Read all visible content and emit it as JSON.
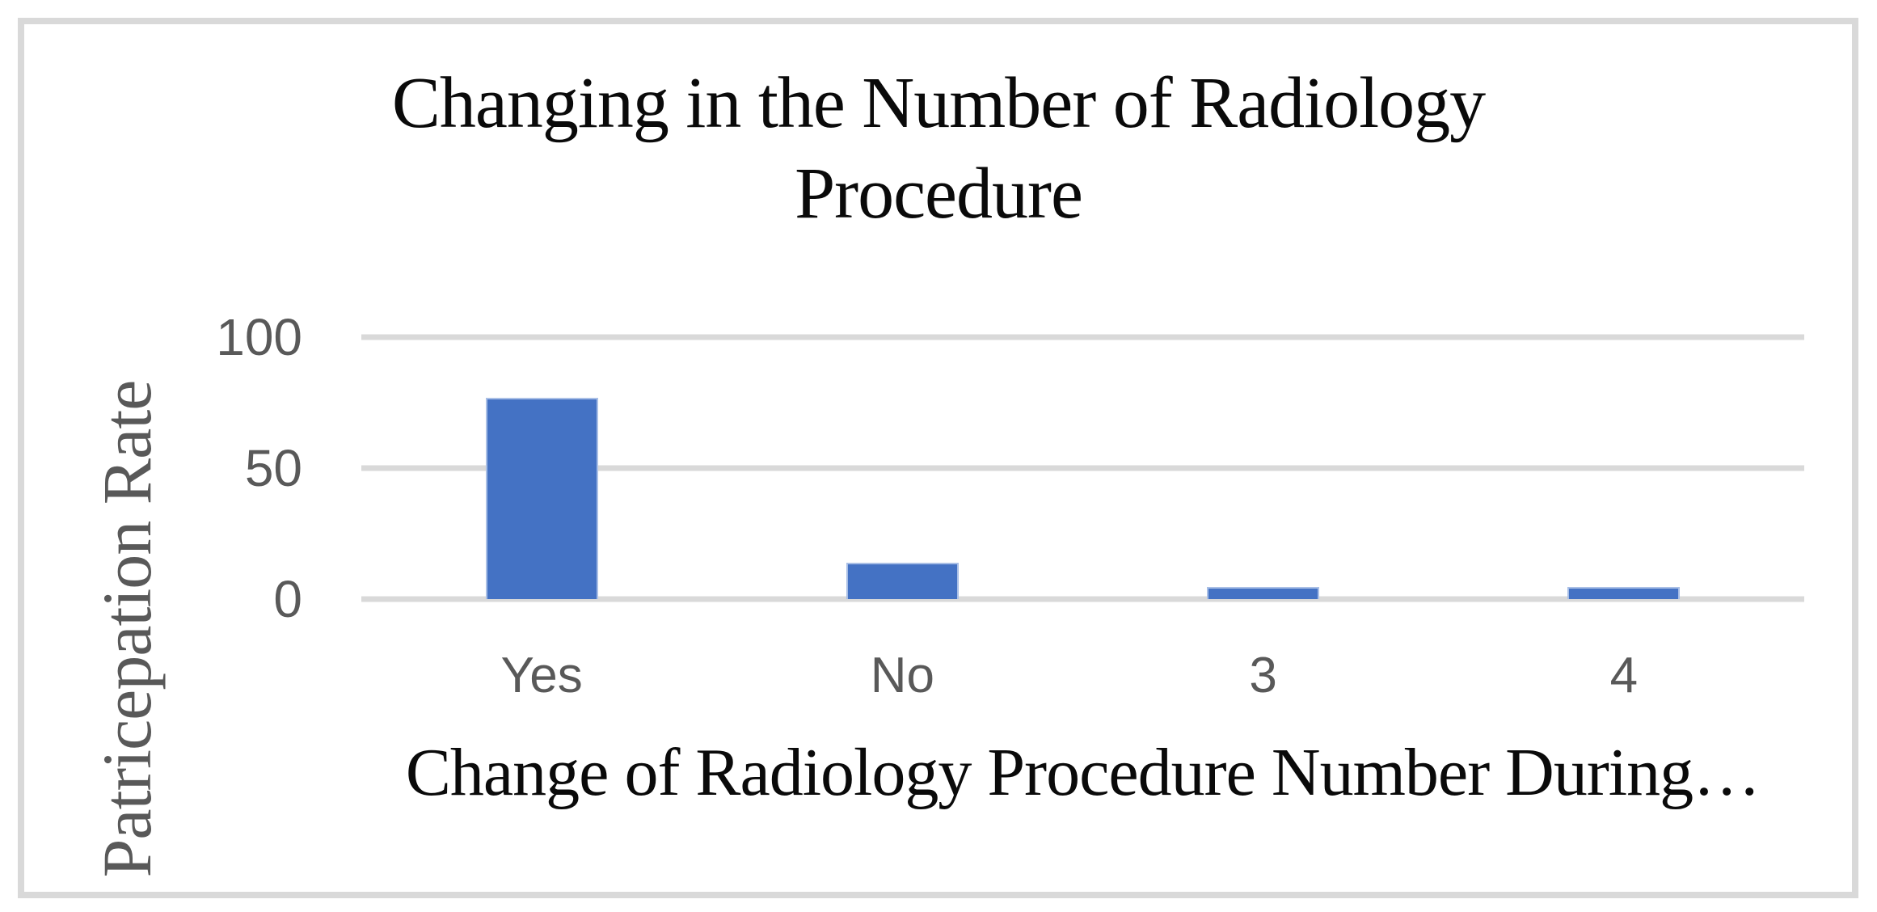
{
  "chart_data": {
    "type": "bar",
    "title": "Changing in the Number of Radiology Procedure",
    "title_lines": [
      "Changing in the Number of Radiology",
      "Procedure"
    ],
    "xlabel": "Change of Radiology Procedure Number During…",
    "ylabel": "Patricepation Rate",
    "categories": [
      "Yes",
      "No",
      "3",
      "4"
    ],
    "values": [
      77,
      14,
      4.5,
      4.5
    ],
    "yticks": [
      100,
      50,
      0
    ],
    "ylim": [
      0,
      100
    ],
    "grid": "horizontal-only",
    "legend": "none",
    "colors": {
      "bar": "#4472C4",
      "bar_edge": "#A9BFE6",
      "gridline": "#D9D9D9",
      "frame_border": "#D9D9D9",
      "tick_labels": "#595959",
      "y_axis_title": "#595959",
      "chart_title": "#0A0A0A",
      "x_axis_title": "#0A0A0A",
      "background": "#FFFFFF"
    }
  }
}
